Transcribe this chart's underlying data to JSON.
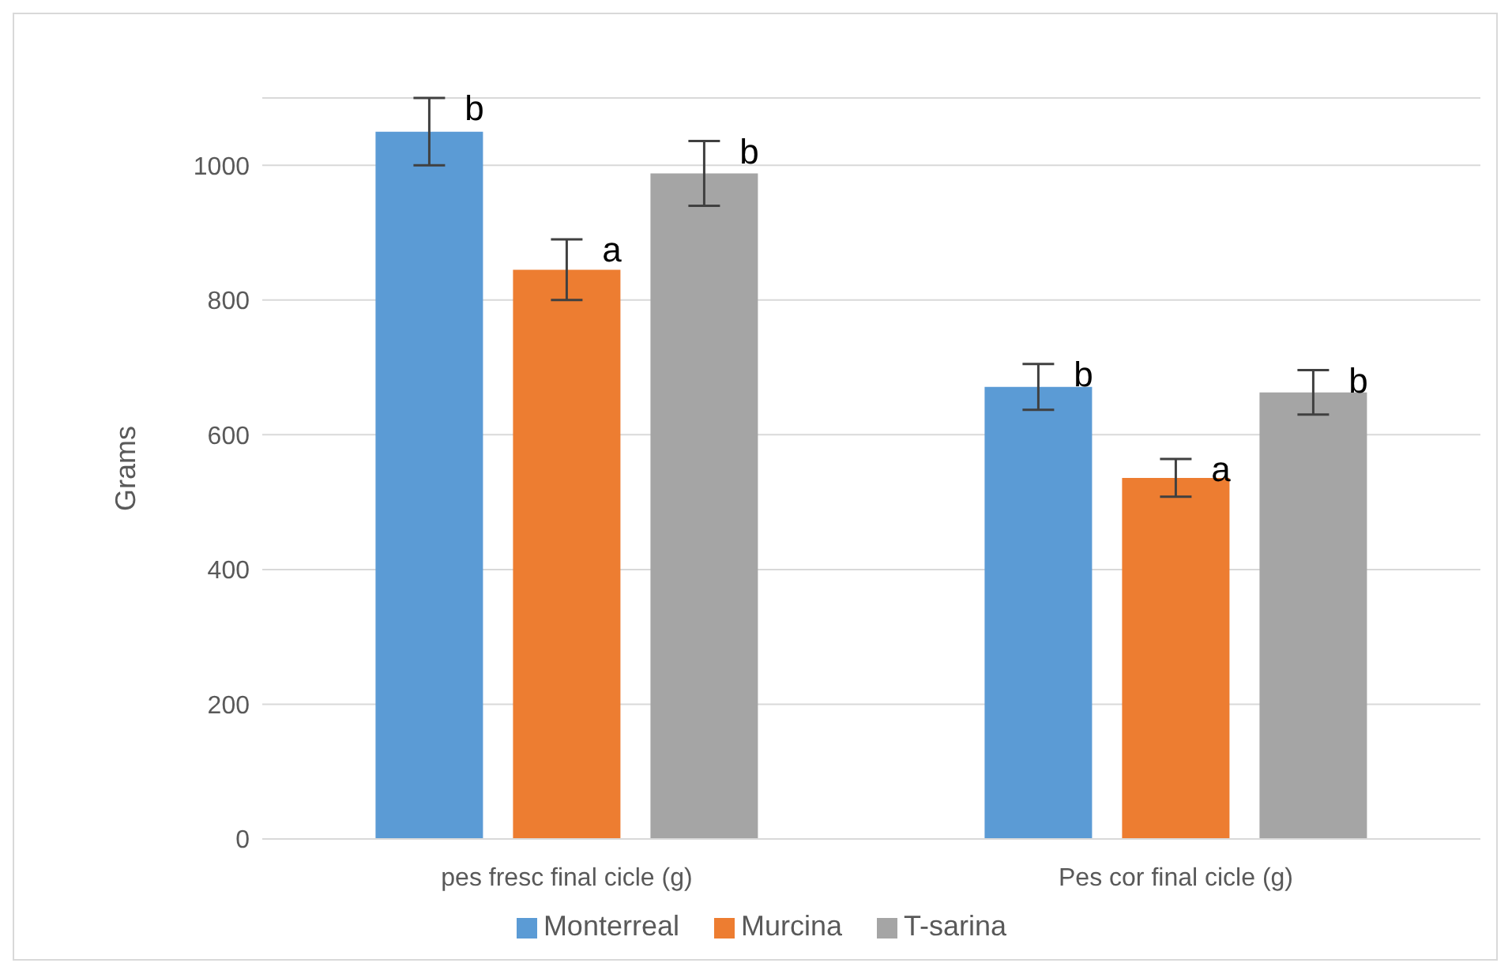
{
  "chart_data": {
    "type": "bar",
    "ylabel": "Grams",
    "categories": [
      "pes fresc final cicle (g)",
      "Pes cor final cicle (g)"
    ],
    "series": [
      {
        "name": "Monterreal",
        "color": "#5b9bd5",
        "values": [
          1050,
          671
        ],
        "errors": [
          50,
          34
        ],
        "value_labels": [
          "b",
          "b"
        ]
      },
      {
        "name": "Murcina",
        "color": "#ed7d31",
        "values": [
          845,
          536
        ],
        "errors": [
          45,
          28
        ],
        "value_labels": [
          "a",
          "a"
        ]
      },
      {
        "name": "T-sarina",
        "color": "#a5a5a5",
        "values": [
          988,
          663
        ],
        "errors": [
          48,
          33
        ],
        "value_labels": [
          "b",
          "b"
        ]
      }
    ],
    "ylim": [
      0,
      1100
    ],
    "yticks": [
      0,
      200,
      400,
      600,
      800,
      1000
    ],
    "grid": "y",
    "legend": "bottom"
  }
}
